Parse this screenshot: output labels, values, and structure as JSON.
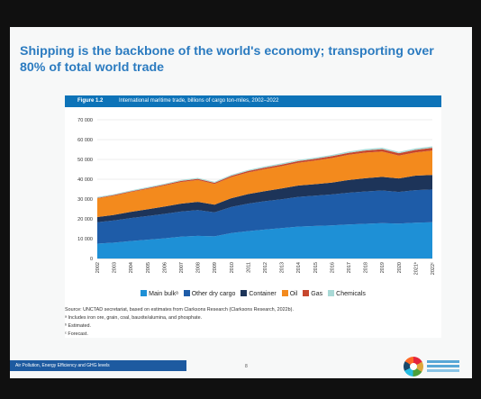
{
  "headline": "Shipping is the backbone of the world's economy; transporting over 80% of total world trade",
  "figure": {
    "number": "Figure 1.2",
    "title": "International maritime trade, billions of cargo ton-miles, 2002–2022"
  },
  "chart_data": {
    "type": "area",
    "stacked": true,
    "categories": [
      "2002",
      "2003",
      "2004",
      "2005",
      "2006",
      "2007",
      "2008",
      "2009",
      "2010",
      "2011",
      "2012",
      "2013",
      "2014",
      "2015",
      "2016",
      "2017",
      "2018",
      "2019",
      "2020",
      "2021ᵇ",
      "2022ᶜ"
    ],
    "yticks": [
      "0",
      "10 000",
      "20 000",
      "30 000",
      "40 000",
      "50 000",
      "60 000",
      "70 000"
    ],
    "ylim": [
      0,
      70000
    ],
    "grid": true,
    "legend_position": "bottom",
    "series": [
      {
        "name": "Main bulkᵃ",
        "color": "#1e90d6",
        "values": [
          7500,
          8000,
          8800,
          9500,
          10200,
          11000,
          11400,
          11200,
          12800,
          13800,
          14600,
          15300,
          16100,
          16400,
          16700,
          17200,
          17500,
          17800,
          17600,
          18100,
          18300
        ]
      },
      {
        "name": "Other dry cargo",
        "color": "#1e5ca8",
        "values": [
          10800,
          11200,
          11600,
          11900,
          12300,
          12700,
          13000,
          12100,
          13200,
          13900,
          14300,
          14600,
          15000,
          15300,
          15600,
          16000,
          16300,
          16500,
          16000,
          16400,
          16500
        ]
      },
      {
        "name": "Container",
        "color": "#1d3459",
        "values": [
          2600,
          2800,
          3100,
          3400,
          3700,
          4000,
          4200,
          3900,
          4400,
          4800,
          5100,
          5400,
          5700,
          5800,
          6000,
          6400,
          6700,
          6900,
          6800,
          7300,
          7400
        ]
      },
      {
        "name": "Oil",
        "color": "#f38a1d",
        "values": [
          9400,
          9700,
          10000,
          10300,
          10600,
          10900,
          11000,
          10400,
          10700,
          10900,
          11100,
          11300,
          11500,
          11900,
          12400,
          12700,
          12900,
          12800,
          11500,
          11700,
          12300
        ]
      },
      {
        "name": "Gas",
        "color": "#c7472e",
        "values": [
          300,
          340,
          380,
          420,
          470,
          520,
          560,
          580,
          650,
          730,
          760,
          790,
          820,
          870,
          920,
          1020,
          1100,
          1200,
          1230,
          1300,
          1350
        ]
      },
      {
        "name": "Chemicals",
        "color": "#a9d9d6",
        "values": [
          400,
          420,
          440,
          460,
          480,
          500,
          510,
          500,
          530,
          560,
          580,
          600,
          620,
          640,
          660,
          690,
          710,
          720,
          710,
          740,
          760
        ]
      }
    ]
  },
  "notes": {
    "source": "Source:  UNCTAD secretariat, based on estimates from Clarksons Research (Clarksons Research, 2022b).",
    "a": "ᵃ Includes iron ore, grain, coal, bauxite/alumina, and phosphate.",
    "b": "ᵇ Estimated.",
    "c": "ᶜ Forecast."
  },
  "footer": {
    "label": "Air Pollution, Energy Efficiency and GHG levels",
    "page": "8"
  },
  "colors": {
    "headline": "#2b7bc0",
    "figure_bar": "#0d73b8",
    "frame": "#101010"
  }
}
